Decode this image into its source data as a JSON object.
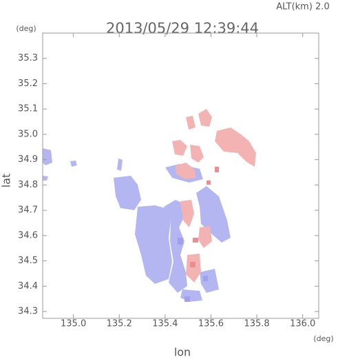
{
  "chart_data": {
    "type": "map",
    "title": "2013/05/29 12:39:44",
    "annotation": "ALT(km) 2.0",
    "xlabel": "lon",
    "ylabel": "lat",
    "xunit": "(deg)",
    "yunit": "(deg)",
    "xlim": [
      134.866,
      136.07
    ],
    "ylim": [
      34.273,
      35.4
    ],
    "xticks": [
      {
        "value": 135,
        "label": "135.0"
      },
      135.2,
      135.4,
      135.6,
      135.8,
      {
        "value": 136,
        "label": "136.0"
      }
    ],
    "yticks": [
      34.3,
      34.4,
      34.5,
      34.6,
      34.7,
      34.8,
      34.9,
      {
        "value": 35,
        "label": "35.0"
      },
      35.1,
      35.2,
      35.3
    ]
  }
}
